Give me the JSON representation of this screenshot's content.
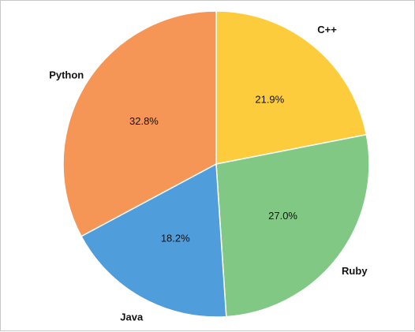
{
  "chart_data": {
    "type": "pie",
    "slices": [
      {
        "category": "C++",
        "value": 21.9,
        "label": "21.9%",
        "color": "#fdcc3c"
      },
      {
        "category": "Ruby",
        "value": 27.0,
        "label": "27.0%",
        "color": "#80c883"
      },
      {
        "category": "Java",
        "value": 18.2,
        "label": "18.2%",
        "color": "#4f9dda"
      },
      {
        "category": "Python",
        "value": 32.8,
        "label": "32.8%",
        "color": "#f59656"
      }
    ],
    "start_angle": "top",
    "direction": "clockwise",
    "legend": "none"
  }
}
